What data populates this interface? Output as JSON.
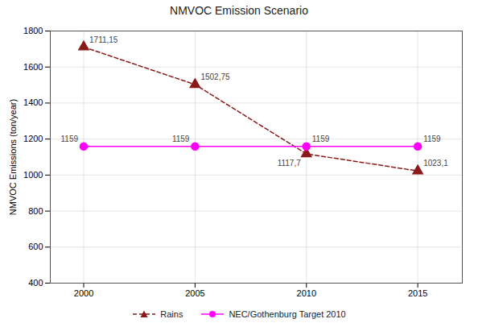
{
  "chart_data": {
    "type": "line",
    "title": "NMVOC Emission Scenario",
    "ylabel": "NMVOC Emissions (ton/year)",
    "x": [
      2000,
      2005,
      2010,
      2015
    ],
    "series": [
      {
        "name": "Rains",
        "color": "#8B1A1A",
        "marker": "triangle",
        "line_style": "dashed",
        "values": [
          1711.15,
          1502.75,
          1117.7,
          1023.1
        ],
        "value_labels": [
          "1711,15",
          "1502,75",
          "1117,7",
          "1023,1"
        ]
      },
      {
        "name": "NEC/Gothenburg Target 2010",
        "color": "#FF00FF",
        "marker": "circle",
        "line_style": "solid",
        "values": [
          1159,
          1159,
          1159,
          1159
        ]
      }
    ],
    "xlim": [
      1998.5,
      2017
    ],
    "xticks": [
      2000,
      2005,
      2010,
      2015
    ],
    "ylim": [
      400,
      1800
    ],
    "yticks": [
      400,
      600,
      800,
      1000,
      1200,
      1400,
      1600,
      1800
    ],
    "grid": true,
    "legend": "bottom",
    "data_labels": true
  }
}
